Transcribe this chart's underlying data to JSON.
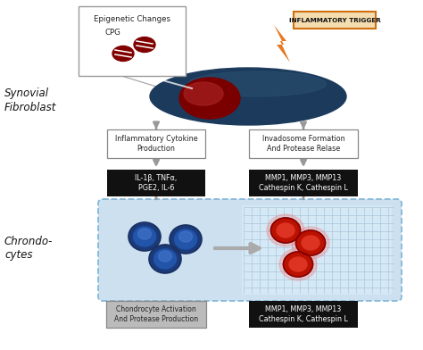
{
  "bg_color": "#ffffff",
  "synovial_label": "Synovial\nFibroblast",
  "chondrocytes_label": "Chrondo-\ncytes",
  "epigenetic_label": "Epigenetic Changes",
  "cpg_label": "CPG",
  "inflammatory_trigger_label": "INFLAMMATORY TRIGGER",
  "box1_label": "Inflammatory Cytokine\nProduction",
  "box2_label": "Invadosome Formation\nAnd Protease Relase",
  "black_box1_label": "IL-1β, TNFα,\nPGE2, IL-6",
  "black_box2_label": "MMP1, MMP3, MMP13\nCathespin K, Cathespin L",
  "bottom_gray_label": "Chondrocyte Activation\nAnd Protease Production",
  "bottom_black_label": "MMP1, MMP3, MMP13\nCathespin K, Cathespin L",
  "cell_body_dark": "#1b3a5c",
  "cell_highlight": "#2a5070",
  "cell_nucleus": "#7a0000",
  "cell_nucleus_highlight": "#aa2222",
  "cpg_color": "#800000",
  "orange_color": "#e87722",
  "black_box_bg": "#111111",
  "chondro_box_bg": "#cce0f0",
  "chondro_box_right_bg": "#ddeeff",
  "blue_cell_dark": "#1a3a7a",
  "blue_cell_mid": "#2255aa",
  "blue_cell_light": "#4477cc",
  "red_cell_dark": "#880000",
  "red_cell_mid": "#bb1100",
  "red_cell_light": "#dd3322",
  "red_cell_glow": "#ee8888",
  "bottom_gray_bg": "#bbbbbb",
  "grid_color": "#aac8dc",
  "arrow_color": "#999999",
  "box_border": "#888888"
}
